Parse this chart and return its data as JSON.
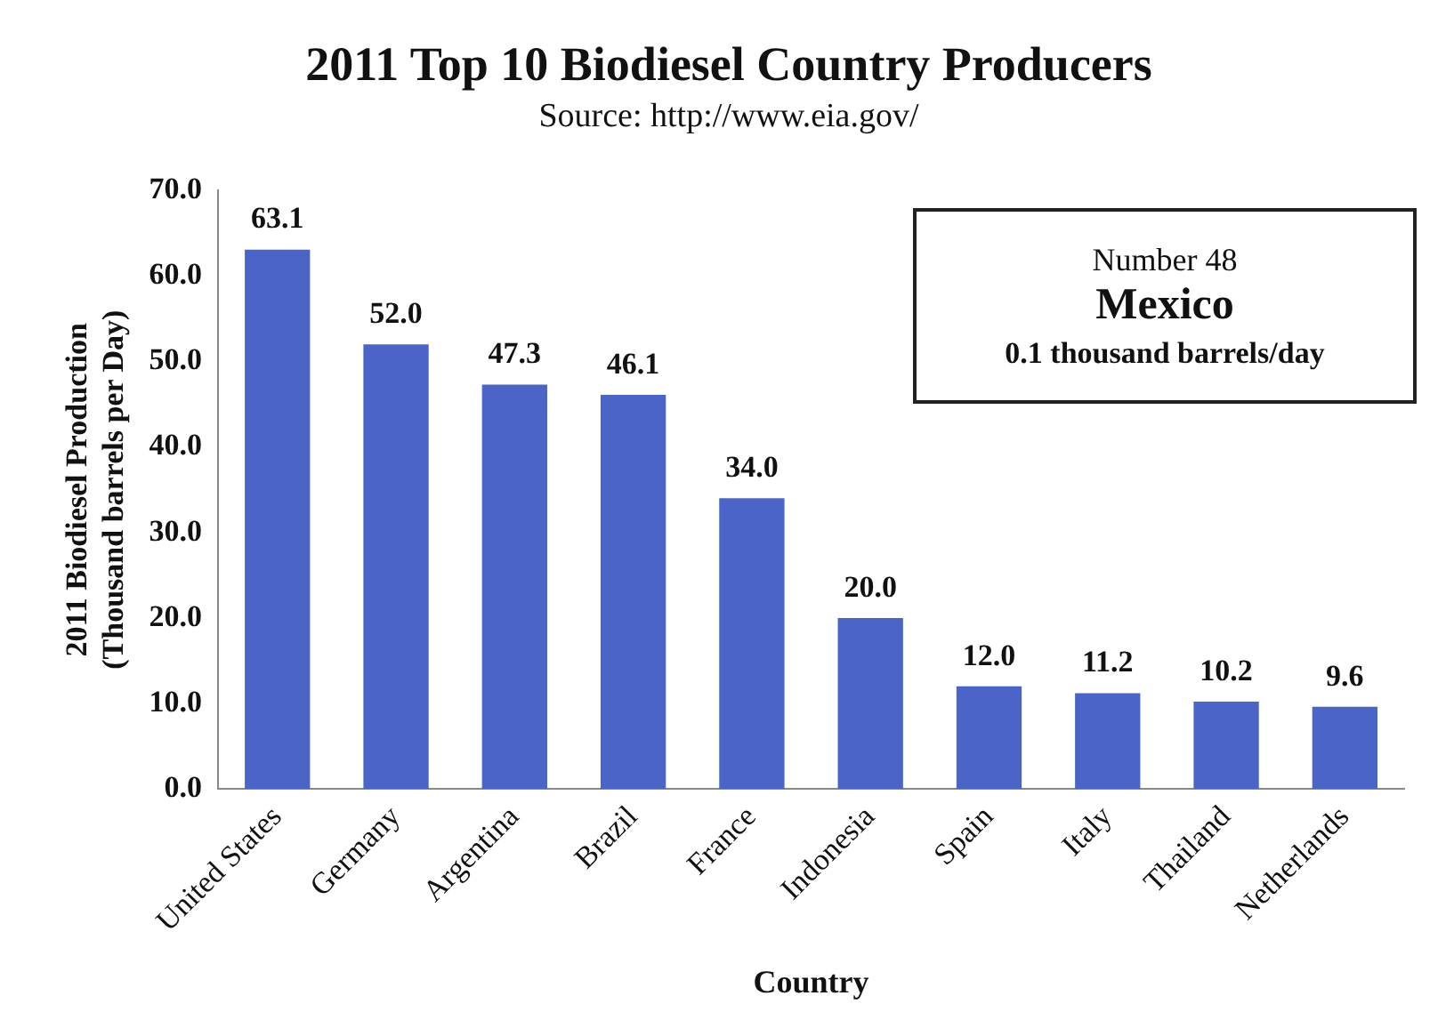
{
  "chart_data": {
    "type": "bar",
    "title": "2011 Top 10 Biodiesel Country Producers",
    "subtitle": "Source: http://www.eia.gov/",
    "xlabel": "Country",
    "ylabel": "2011 Biodiesel Production\n(Thousand barrels per Day)",
    "categories": [
      "United States",
      "Germany",
      "Argentina",
      "Brazil",
      "France",
      "Indonesia",
      "Spain",
      "Italy",
      "Thailand",
      "Netherlands"
    ],
    "values": [
      63.1,
      52.0,
      47.3,
      46.1,
      34.0,
      20.0,
      12.0,
      11.2,
      10.2,
      9.6
    ],
    "value_labels": [
      "63.1",
      "52.0",
      "47.3",
      "46.1",
      "34.0",
      "20.0",
      "12.0",
      "11.2",
      "10.2",
      "9.6"
    ],
    "color": "#4a64c8",
    "ylim": [
      0,
      70
    ],
    "yticks": [
      {
        "value": 0,
        "label": "0.0"
      },
      {
        "value": 10,
        "label": "10.0"
      },
      {
        "value": 20,
        "label": "20.0"
      },
      {
        "value": 30,
        "label": "30.0"
      },
      {
        "value": 40,
        "label": "40.0"
      },
      {
        "value": 50,
        "label": "50.0"
      },
      {
        "value": 60,
        "label": "60.0"
      },
      {
        "value": 70,
        "label": "70.0"
      }
    ],
    "grid": false,
    "legend": false,
    "annotations": [
      "Number 48",
      "Mexico",
      "0.1 thousand barrels/day"
    ]
  }
}
